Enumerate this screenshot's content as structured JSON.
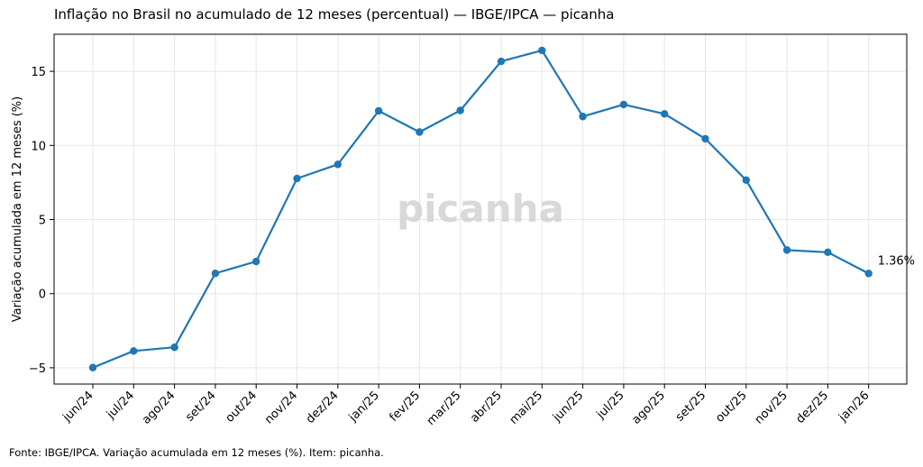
{
  "title": "Inflação no Brasil no acumulado de 12 meses (percentual) — IBGE/IPCA — picanha",
  "source_note": "Fonte: IBGE/IPCA. Variação acumulada em 12 meses (%). Item: picanha.",
  "watermark": "picanha",
  "colors": {
    "line": "#1f77b4",
    "grid": "#e6e6e6",
    "watermark": "#cccccc"
  },
  "chart_data": {
    "type": "line",
    "ylabel": "Variação acumulada em 12 meses (%)",
    "xlabel": "",
    "ylim": [
      -6.1,
      17.5
    ],
    "yticks": [
      -5,
      0,
      5,
      10,
      15
    ],
    "ytick_labels": [
      "−5",
      "0",
      "5",
      "10",
      "15"
    ],
    "grid": true,
    "categories": [
      "jun/24",
      "jul/24",
      "ago/24",
      "set/24",
      "out/24",
      "nov/24",
      "dez/24",
      "jan/25",
      "fev/25",
      "mar/25",
      "abr/25",
      "mai/25",
      "jun/25",
      "jul/25",
      "ago/25",
      "set/25",
      "out/25",
      "nov/25",
      "dez/25",
      "jan/26"
    ],
    "series": [
      {
        "values": [
          -4.99,
          -3.87,
          -3.62,
          1.37,
          2.17,
          7.77,
          8.72,
          12.33,
          10.9,
          12.36,
          15.67,
          16.41,
          11.95,
          12.76,
          12.13,
          10.45,
          7.66,
          2.94,
          2.79,
          1.36
        ]
      }
    ],
    "annotations": [
      {
        "category": "jan/26",
        "text": "1.36%"
      }
    ]
  }
}
